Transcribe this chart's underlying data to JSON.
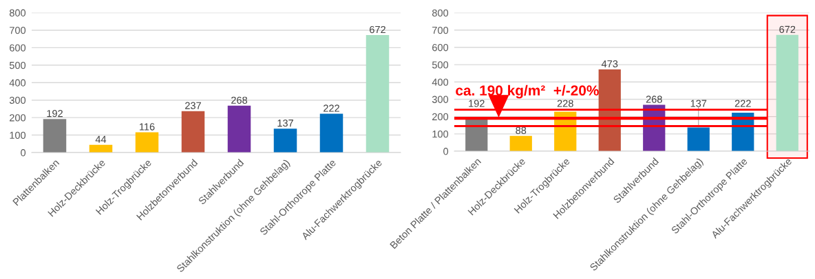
{
  "chart_data": [
    {
      "type": "bar",
      "categories": [
        "Plattenbalken",
        "Holz-Deckbrücke",
        "Holz-Trogbrücke",
        "Holzbetonverbund",
        "Stahlverbund",
        "Stahlkonstruktion (ohne Gehbelag)",
        "Stahl-Orthotrope Platte",
        "Alu-Fachwerktrogbrücke"
      ],
      "values": [
        192,
        44,
        116,
        237,
        268,
        137,
        222,
        672
      ],
      "colors": [
        "#808080",
        "#ffc000",
        "#ffc000",
        "#c0533c",
        "#7030a0",
        "#0070c0",
        "#0070c0",
        "#a8e0c4"
      ],
      "ylim": [
        0,
        800
      ],
      "yticks": [
        0,
        100,
        200,
        300,
        400,
        500,
        600,
        700,
        800
      ],
      "grid": "y",
      "data_labels": true
    },
    {
      "type": "bar",
      "categories": [
        "Beton Platte / Plattenbalken",
        "Holz-Deckbrücke",
        "Holz-Trogbrücke",
        "Holzbetonverbund",
        "Stahlverbund",
        "Stahlkonstruktion (ohne Gehbelag)",
        "Stahl-Orthotrope Platte",
        "Alu-Fachwerktrogbrücke"
      ],
      "values": [
        192,
        88,
        228,
        473,
        268,
        137,
        222,
        672
      ],
      "colors": [
        "#808080",
        "#ffc000",
        "#ffc000",
        "#c0533c",
        "#7030a0",
        "#0070c0",
        "#0070c0",
        "#a8e0c4"
      ],
      "ylim": [
        0,
        800
      ],
      "yticks": [
        0,
        100,
        200,
        300,
        400,
        500,
        600,
        700,
        800
      ],
      "grid": "y",
      "data_labels": true,
      "ref_lines": [
        {
          "axis": "y",
          "value": 240,
          "color": "#ff0000"
        },
        {
          "axis": "y",
          "value": 190,
          "label": "ca. 190 kg/m²  +/-20%",
          "color": "#ff0000"
        },
        {
          "axis": "y",
          "value": 145,
          "color": "#ff0000"
        }
      ],
      "bands": [
        {
          "axis": "x",
          "from": "Alu-Fachwerktrogbrücke",
          "to": "Alu-Fachwerktrogbrücke",
          "color": "#ff0000"
        }
      ]
    }
  ]
}
